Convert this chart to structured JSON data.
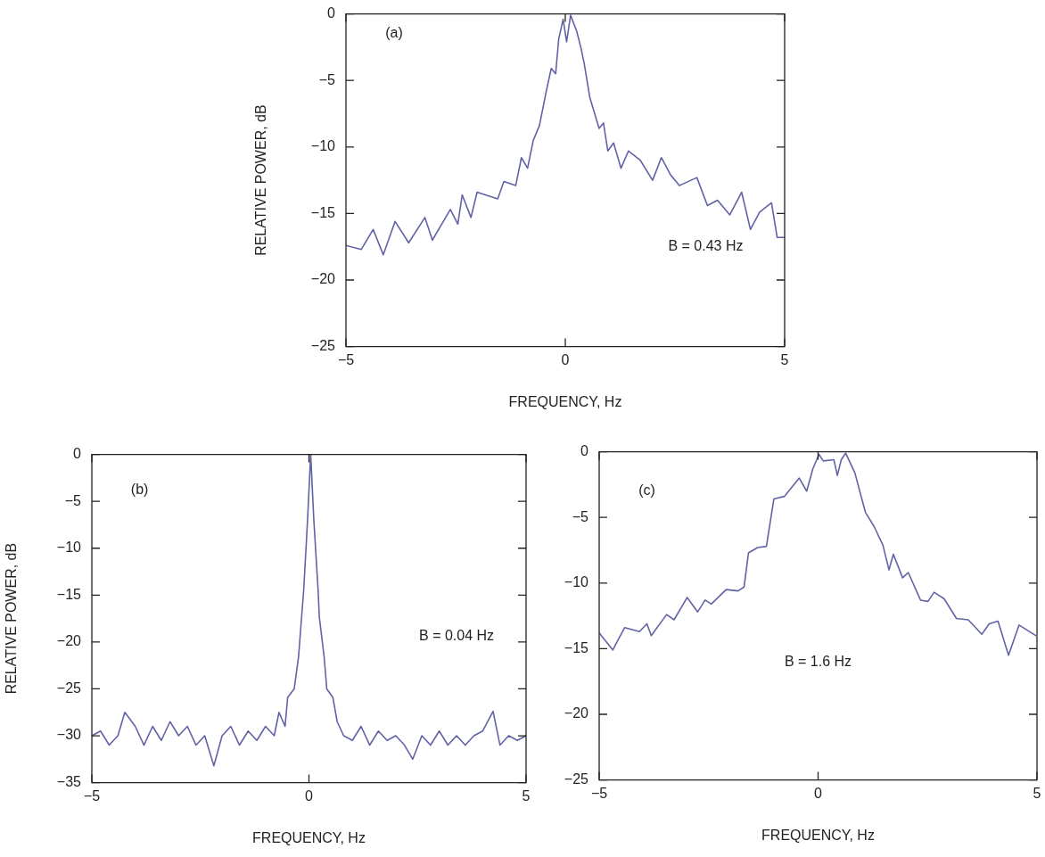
{
  "chart_data": [
    {
      "type": "line",
      "ylabel": "RELATIVE POWER, dB",
      "xlabel": "FREQUENCY, Hz",
      "annotations": [
        "(a)",
        "B = 0.43 Hz"
      ],
      "xlim": [
        -5,
        5
      ],
      "xticks": [
        -5,
        0,
        5
      ],
      "ylim": [
        -25,
        0
      ],
      "yticks": [
        0,
        -5,
        -10,
        -15,
        -20,
        -25
      ],
      "grid": false,
      "legend": false,
      "marker": "none",
      "line_style": "solid",
      "series": [
        {
          "color": "#6262a6",
          "x": [
            -5,
            -4.65,
            -4.38,
            -4.15,
            -3.88,
            -3.57,
            -3.2,
            -3.03,
            -2.62,
            -2.45,
            -2.35,
            -2.15,
            -2.01,
            -1.54,
            -1.4,
            -1.13,
            -1,
            -0.86,
            -0.73,
            -0.59,
            -0.42,
            -0.32,
            -0.22,
            -0.15,
            -0.05,
            0.03,
            0.12,
            0.26,
            0.36,
            0.43,
            0.56,
            0.77,
            0.87,
            0.97,
            1.1,
            1.27,
            1.44,
            1.71,
            1.99,
            2.19,
            2.4,
            2.6,
            3,
            3.24,
            3.47,
            3.75,
            4.02,
            4.22,
            4.43,
            4.7,
            4.83,
            5
          ],
          "values": [
            -17.4,
            -17.7,
            -16.2,
            -18.1,
            -15.6,
            -17.2,
            -15.3,
            -17,
            -14.7,
            -15.8,
            -13.6,
            -15.3,
            -13.4,
            -13.9,
            -12.6,
            -12.9,
            -10.8,
            -11.6,
            -9.5,
            -8.4,
            -5.6,
            -4.1,
            -4.5,
            -1.9,
            -0.4,
            -2.1,
            -0.1,
            -1.3,
            -2.6,
            -3.7,
            -6.3,
            -8.6,
            -8.2,
            -10.3,
            -9.7,
            -11.6,
            -10.3,
            -11,
            -12.5,
            -10.8,
            -12.1,
            -12.9,
            -12.3,
            -14.4,
            -14,
            -15.1,
            -13.4,
            -16.2,
            -14.9,
            -14.2,
            -16.8,
            -16.8
          ]
        }
      ]
    },
    {
      "type": "line",
      "ylabel": "RELATIVE POWER, dB",
      "xlabel": "FREQUENCY, Hz",
      "annotations": [
        "(b)",
        "B = 0.04 Hz"
      ],
      "xlim": [
        -5,
        5
      ],
      "xticks": [
        -5,
        0,
        5
      ],
      "ylim": [
        -35,
        0
      ],
      "yticks": [
        0,
        -5,
        -10,
        -15,
        -20,
        -25,
        -30,
        -35
      ],
      "grid": false,
      "legend": false,
      "marker": "none",
      "line_style": "solid",
      "series": [
        {
          "color": "#6262a6",
          "x": [
            -5,
            -4.8,
            -4.6,
            -4.4,
            -4.24,
            -4,
            -3.8,
            -3.6,
            -3.4,
            -3.2,
            -3,
            -2.8,
            -2.6,
            -2.4,
            -2.19,
            -2,
            -1.8,
            -1.6,
            -1.4,
            -1.2,
            -1,
            -0.8,
            -0.69,
            -0.55,
            -0.49,
            -0.34,
            -0.24,
            -0.17,
            -0.12,
            -0.03,
            0.04,
            0.11,
            0.21,
            0.24,
            0.35,
            0.41,
            0.55,
            0.65,
            0.8,
            1,
            1.2,
            1.4,
            1.6,
            1.8,
            2,
            2.2,
            2.39,
            2.6,
            2.8,
            3,
            3.2,
            3.4,
            3.6,
            3.8,
            4,
            4.24,
            4.4,
            4.6,
            4.8,
            5
          ],
          "values": [
            -30,
            -29.5,
            -31,
            -30,
            -27.5,
            -29,
            -31,
            -29,
            -30.5,
            -28.5,
            -30,
            -29,
            -31,
            -30,
            -33.2,
            -30,
            -29,
            -31,
            -29.5,
            -30.5,
            -29,
            -30,
            -27.5,
            -29,
            -25.9,
            -25,
            -21.6,
            -17.4,
            -14.4,
            -6.8,
            0,
            -6.8,
            -14.4,
            -17.4,
            -21.6,
            -25,
            -25.9,
            -28.5,
            -30,
            -30.5,
            -29,
            -31,
            -29.5,
            -30.5,
            -30,
            -31,
            -32.5,
            -30,
            -31,
            -29.5,
            -31,
            -30,
            -31,
            -30,
            -29.5,
            -27.4,
            -31,
            -30,
            -30.5,
            -30
          ]
        }
      ]
    },
    {
      "type": "line",
      "xlabel": "FREQUENCY, Hz",
      "annotations": [
        "(c)",
        "B = 1.6 Hz"
      ],
      "xlim": [
        -5,
        5
      ],
      "xticks": [
        -5,
        0,
        5
      ],
      "ylim": [
        -25,
        0
      ],
      "yticks": [
        0,
        -5,
        -10,
        -15,
        -20,
        -25
      ],
      "grid": false,
      "legend": false,
      "marker": "none",
      "line_style": "solid",
      "series": [
        {
          "color": "#6262a6",
          "x": [
            -5,
            -4.69,
            -4.42,
            -4.08,
            -3.91,
            -3.81,
            -3.46,
            -3.29,
            -2.99,
            -2.75,
            -2.58,
            -2.44,
            -2.1,
            -1.83,
            -1.69,
            -1.59,
            -1.38,
            -1.18,
            -1.01,
            -0.77,
            -0.43,
            -0.26,
            -0.12,
            0.02,
            0.12,
            0.36,
            0.44,
            0.53,
            0.63,
            0.84,
            1.08,
            1.28,
            1.48,
            1.62,
            1.72,
            1.93,
            2.06,
            2.34,
            2.51,
            2.65,
            2.88,
            3.16,
            3.43,
            3.74,
            3.91,
            4.11,
            4.35,
            4.59,
            4.97
          ],
          "values": [
            -13.8,
            -15.1,
            -13.4,
            -13.7,
            -13.1,
            -14,
            -12.4,
            -12.8,
            -11.1,
            -12.2,
            -11.3,
            -11.6,
            -10.5,
            -10.6,
            -10.3,
            -7.7,
            -7.3,
            -7.2,
            -3.6,
            -3.4,
            -2,
            -3,
            -1.3,
            -0.2,
            -0.7,
            -0.6,
            -1.8,
            -0.6,
            -0.1,
            -1.6,
            -4.6,
            -5.7,
            -7.1,
            -9,
            -7.8,
            -9.6,
            -9.2,
            -11.3,
            -11.4,
            -10.7,
            -11.2,
            -12.7,
            -12.8,
            -13.9,
            -13.1,
            -12.9,
            -15.5,
            -13.2,
            -14
          ]
        }
      ]
    }
  ]
}
